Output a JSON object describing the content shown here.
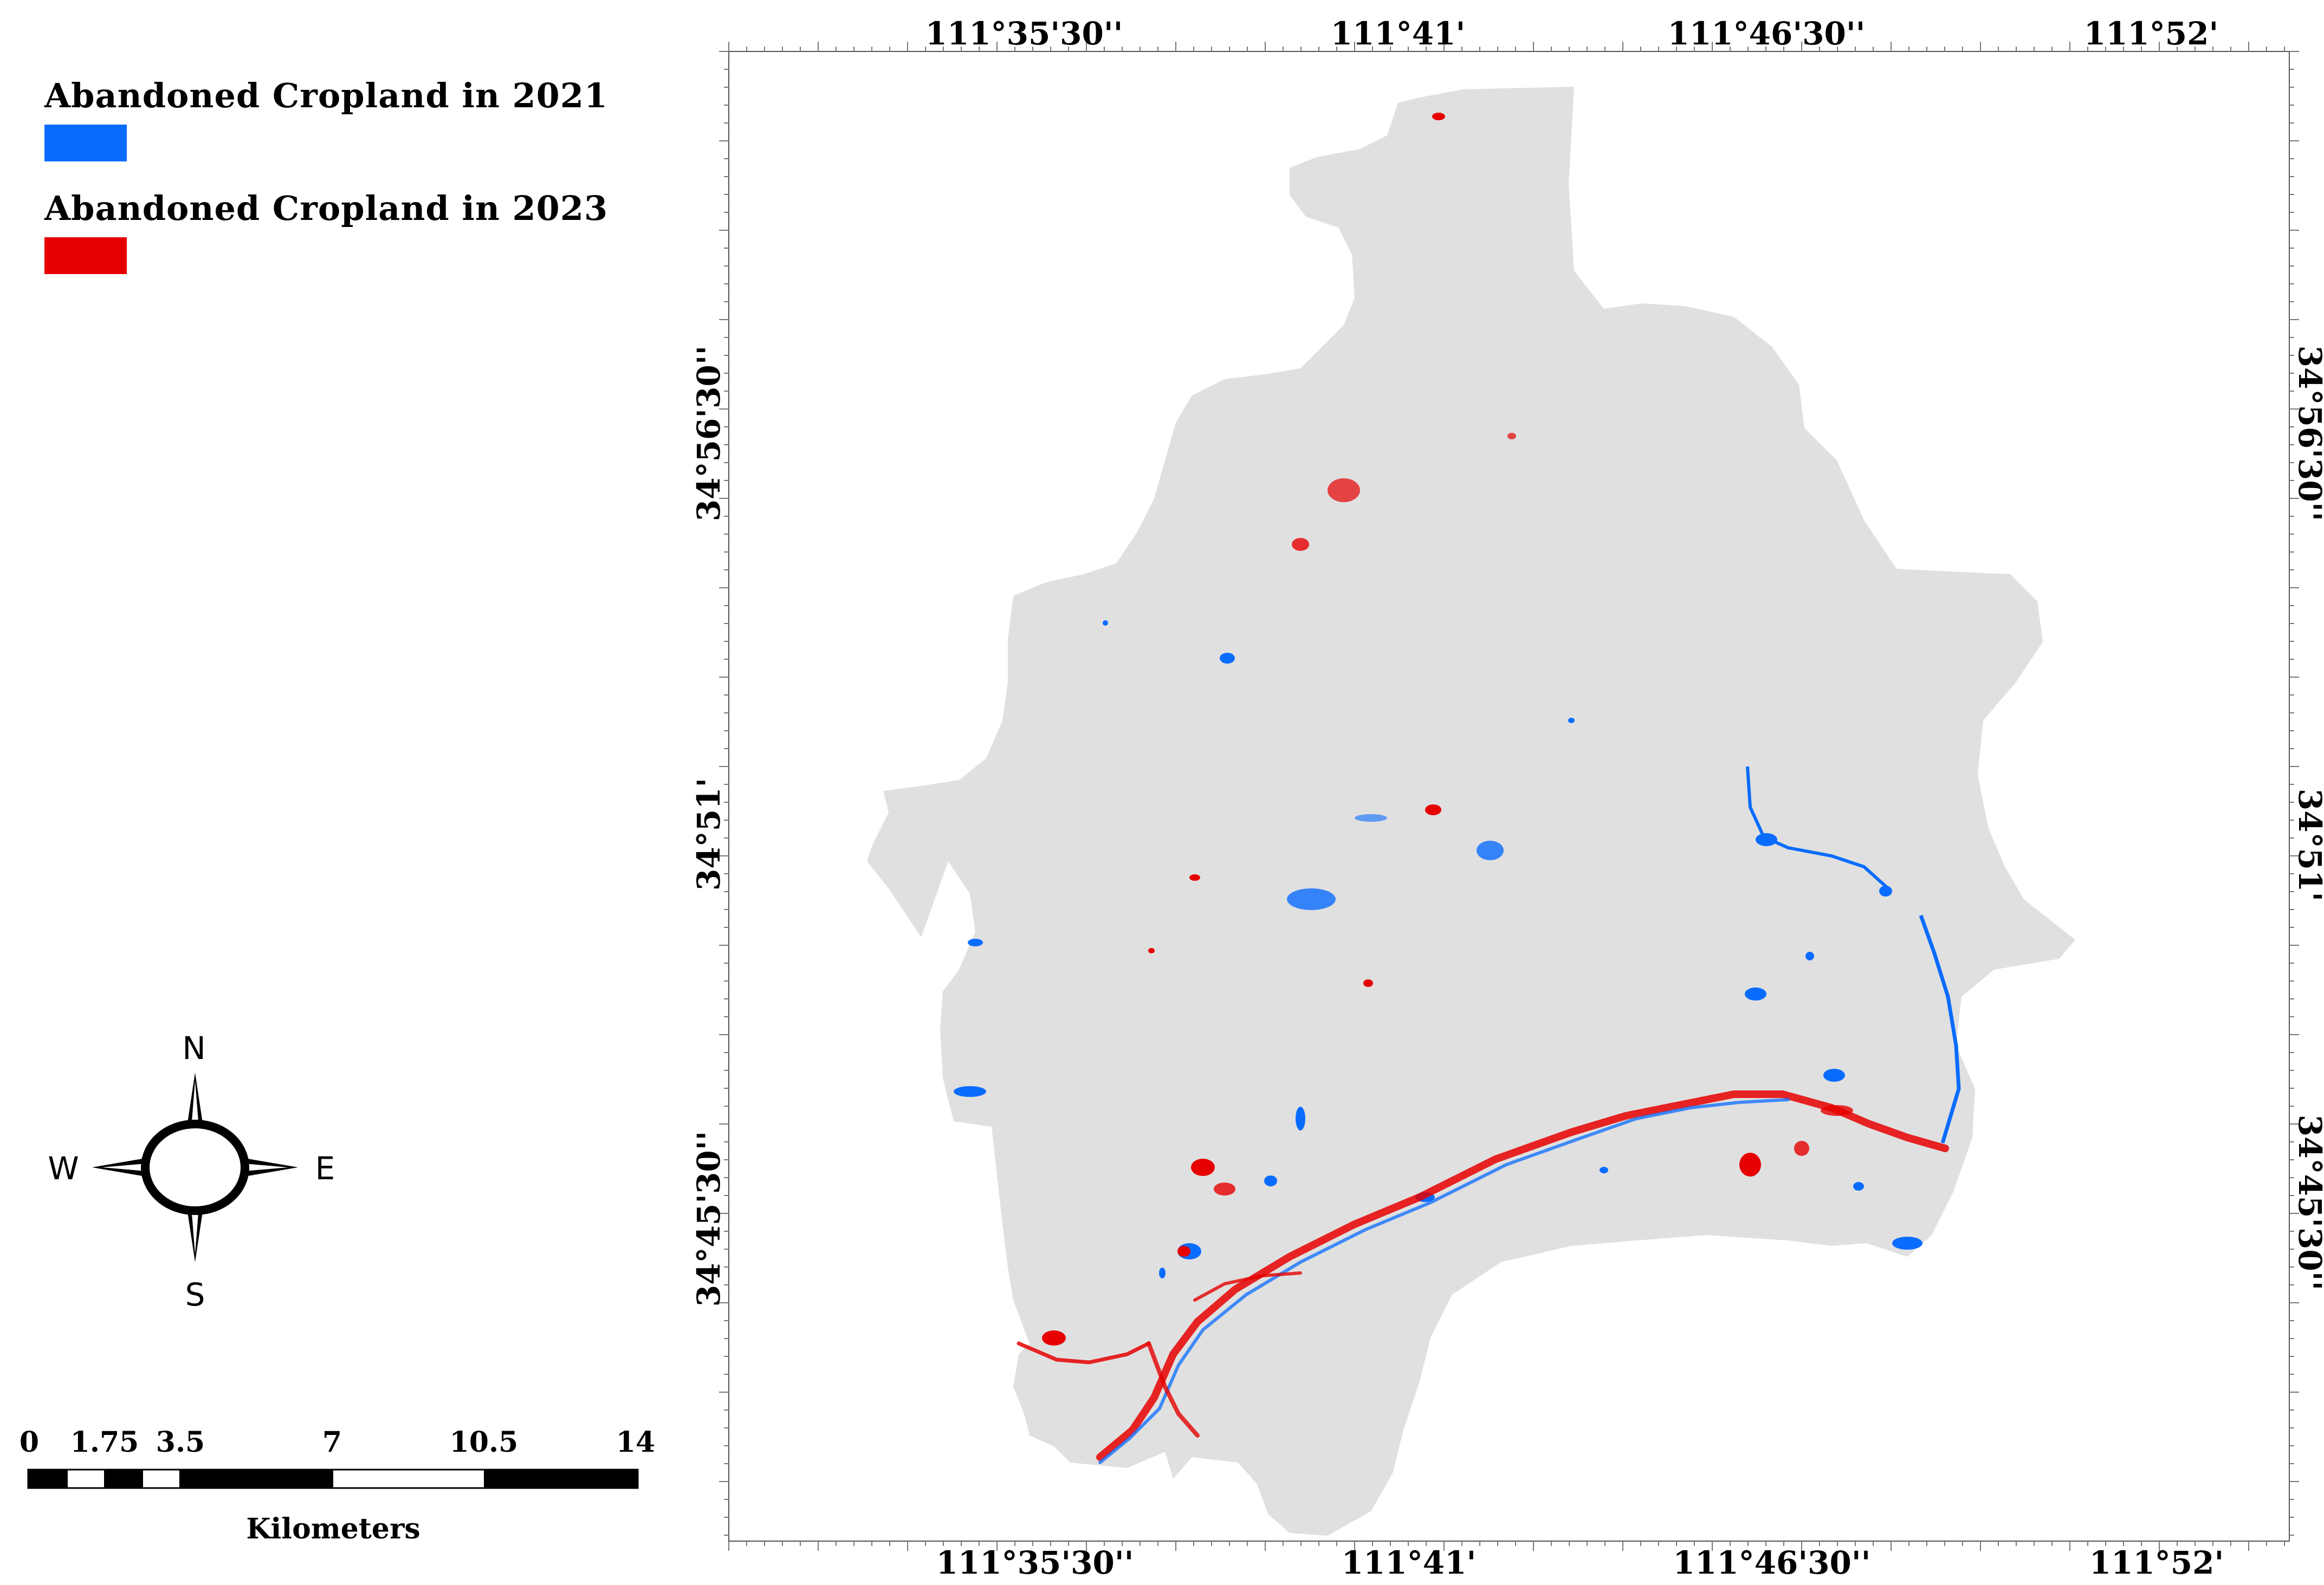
{
  "legend": {
    "items": [
      {
        "label": "Abandoned Cropland in 2021",
        "color": "#0a6cff"
      },
      {
        "label": "Abandoned Cropland in 2023",
        "color": "#e60000"
      }
    ]
  },
  "graticule": {
    "top": [
      "111°35'30''",
      "111°41'",
      "111°46'30''",
      "111°52'"
    ],
    "bottom": [
      "111°35'30''",
      "111°41'",
      "111°46'30''",
      "111°52'"
    ],
    "left": [
      "34°56'30''",
      "34°51'",
      "34°45'30''"
    ],
    "right": [
      "34°56'30''",
      "34°51'",
      "34°45'30''"
    ]
  },
  "compass": {
    "north": "N",
    "south": "S",
    "east": "E",
    "west": "W"
  },
  "scale_bar": {
    "ticks": [
      "0",
      "1.75",
      "3.5",
      "7",
      "10.5",
      "14"
    ],
    "unit": "Kilometers"
  },
  "colors": {
    "region_fill": "#e0e0e0",
    "abandoned_2021": "#0a6cff",
    "abandoned_2023": "#e60000"
  }
}
